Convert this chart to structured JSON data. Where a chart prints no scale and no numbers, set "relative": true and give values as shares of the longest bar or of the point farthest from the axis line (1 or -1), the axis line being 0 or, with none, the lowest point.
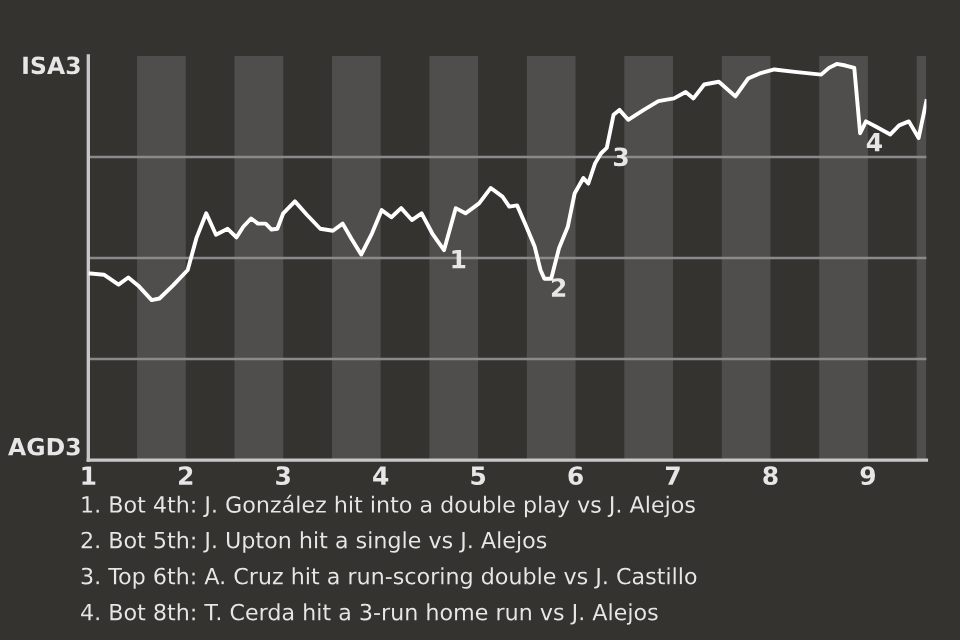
{
  "chart_data": {
    "type": "line",
    "relative": true,
    "grid": "y",
    "line_style": "solid",
    "marker": "none",
    "x": [
      1.02,
      1.16,
      1.31,
      1.41,
      1.51,
      1.65,
      1.73,
      1.87,
      2.02,
      2.11,
      2.21,
      2.31,
      2.43,
      2.52,
      2.59,
      2.67,
      2.74,
      2.82,
      2.88,
      2.94,
      3.0,
      3.12,
      3.24,
      3.38,
      3.51,
      3.61,
      3.7,
      3.8,
      3.91,
      4.01,
      4.11,
      4.21,
      4.32,
      4.42,
      4.53,
      4.65,
      4.77,
      4.87,
      5.01,
      5.13,
      5.25,
      5.32,
      5.4,
      5.49,
      5.58,
      5.64,
      5.68,
      5.75,
      5.83,
      5.92,
      5.99,
      6.08,
      6.13,
      6.2,
      6.26,
      6.32,
      6.39,
      6.45,
      6.54,
      6.7,
      6.85,
      7.01,
      7.13,
      7.21,
      7.32,
      7.47,
      7.64,
      7.77,
      7.89,
      8.04,
      8.25,
      8.52,
      8.6,
      8.68,
      8.77,
      8.86,
      8.92,
      8.98,
      9.08,
      9.23,
      9.32,
      9.42,
      9.52,
      9.6
    ],
    "series": [
      {
        "color": "#ffffff",
        "values": [
          0.471,
          0.468,
          0.443,
          0.461,
          0.441,
          0.404,
          0.408,
          0.441,
          0.48,
          0.561,
          0.623,
          0.569,
          0.584,
          0.562,
          0.589,
          0.61,
          0.597,
          0.597,
          0.582,
          0.584,
          0.623,
          0.653,
          0.62,
          0.584,
          0.579,
          0.597,
          0.559,
          0.519,
          0.572,
          0.631,
          0.613,
          0.636,
          0.606,
          0.623,
          0.572,
          0.53,
          0.636,
          0.623,
          0.648,
          0.687,
          0.665,
          0.64,
          0.643,
          0.592,
          0.539,
          0.48,
          0.458,
          0.458,
          0.535,
          0.589,
          0.673,
          0.712,
          0.698,
          0.749,
          0.774,
          0.788,
          0.872,
          0.884,
          0.859,
          0.884,
          0.906,
          0.913,
          0.929,
          0.913,
          0.948,
          0.955,
          0.918,
          0.963,
          0.976,
          0.986,
          0.98,
          0.973,
          0.99,
          1,
          0.996,
          0.99,
          0.825,
          0.855,
          0.842,
          0.822,
          0.845,
          0.855,
          0.813,
          0.906
        ]
      }
    ],
    "xlim": [
      1,
      9.6
    ],
    "xticks": [
      1,
      2,
      3,
      4,
      5,
      6,
      7,
      8,
      9
    ],
    "bands": [
      {
        "axis": "x",
        "from": 1.5,
        "to": 2,
        "color": "#4f4e4c"
      },
      {
        "axis": "x",
        "from": 2.5,
        "to": 3,
        "color": "#4f4e4c"
      },
      {
        "axis": "x",
        "from": 3.5,
        "to": 4,
        "color": "#4f4e4c"
      },
      {
        "axis": "x",
        "from": 4.5,
        "to": 5,
        "color": "#4f4e4c"
      },
      {
        "axis": "x",
        "from": 5.5,
        "to": 6,
        "color": "#4f4e4c"
      },
      {
        "axis": "x",
        "from": 6.5,
        "to": 7,
        "color": "#4f4e4c"
      },
      {
        "axis": "x",
        "from": 7.5,
        "to": 8,
        "color": "#4f4e4c"
      },
      {
        "axis": "x",
        "from": 8.5,
        "to": 9,
        "color": "#4f4e4c"
      },
      {
        "axis": "x",
        "from": 9.5,
        "to": 9.6,
        "color": "#4f4e4c"
      }
    ],
    "annotations": [
      "ISA3",
      "AGD3",
      {
        "text": "1",
        "x": 4.65,
        "y": 0.53
      },
      {
        "text": "2",
        "x": 5.68,
        "y": 0.458
      },
      {
        "text": "3",
        "x": 6.32,
        "y": 0.788
      },
      {
        "text": "4",
        "x": 8.92,
        "y": 0.825
      },
      "1. Bot 4th: J. González hit into a double play vs J. Alejos",
      "2. Bot 5th: J. Upton hit a single vs J. Alejos",
      "3. Top 6th: A. Cruz hit a run-scoring double vs J. Castillo",
      "4. Bot 8th: T. Cerda hit a 3-run home run vs J. Alejos"
    ]
  }
}
